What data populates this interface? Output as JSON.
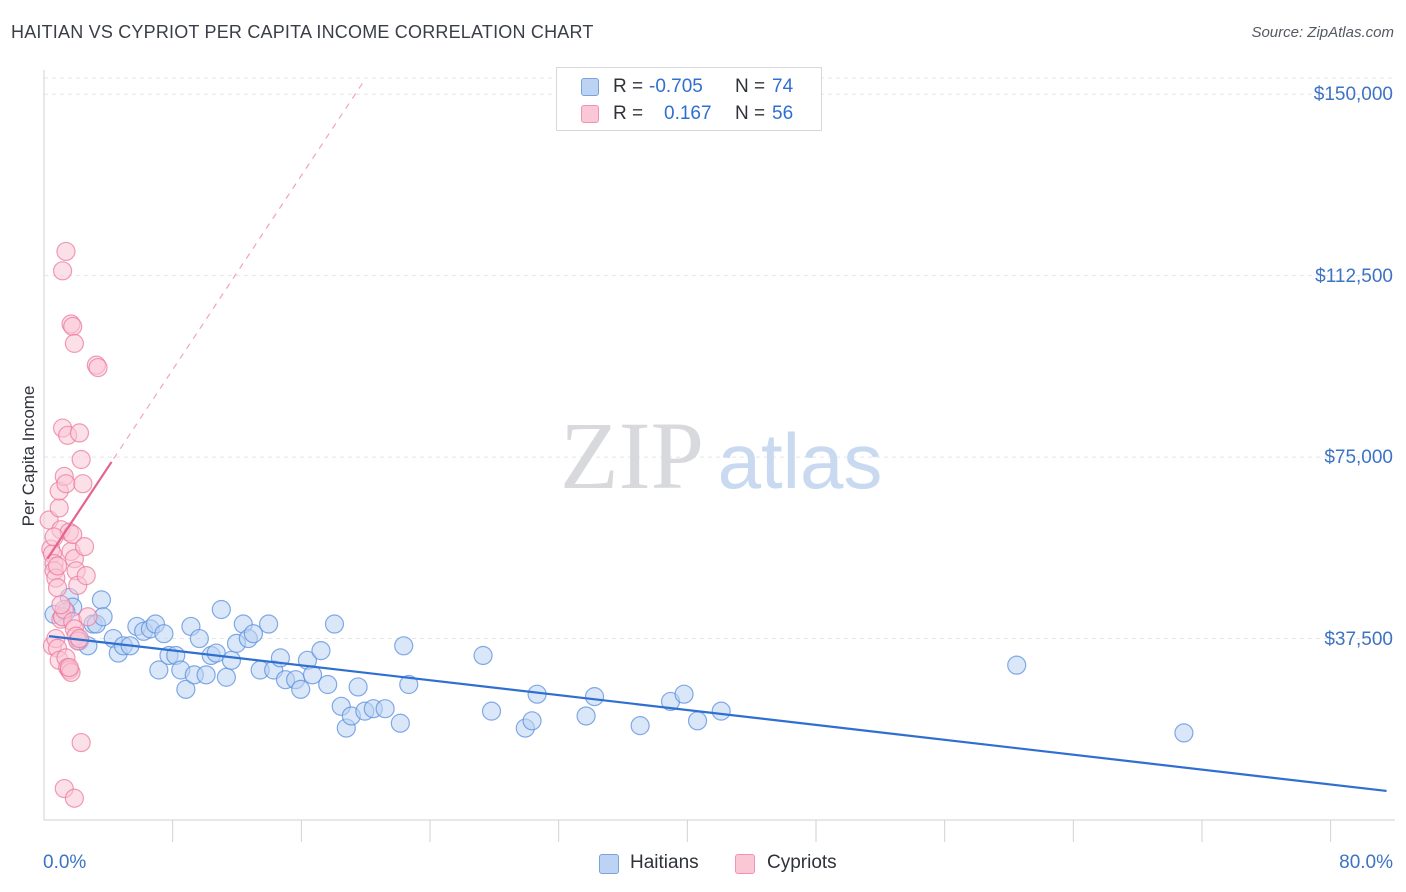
{
  "chart_data": {
    "type": "scatter",
    "title": "HAITIAN VS CYPRIOT PER CAPITA INCOME CORRELATION CHART",
    "source": "Source: ZipAtlas.com",
    "ylabel": "Per Capita Income",
    "xlabel": "",
    "xlim": [
      0,
      80
    ],
    "ylim": [
      0,
      155000
    ],
    "x_tick_labels": [
      "0.0%",
      "80.0%"
    ],
    "y_ticks": [
      {
        "value": 37500,
        "label": "$37,500"
      },
      {
        "value": 75000,
        "label": "$75,000"
      },
      {
        "value": 112500,
        "label": "$112,500"
      },
      {
        "value": 150000,
        "label": "$150,000"
      }
    ],
    "watermark": {
      "left": "ZIP",
      "right": "atlas"
    },
    "legend_stats": [
      {
        "r_label": "R =",
        "r_value": "-0.705",
        "n_label": "N =",
        "n_value": "74",
        "color": "#5b8fde"
      },
      {
        "r_label": "R =",
        "r_value": "0.167",
        "n_label": "N =",
        "n_value": "56",
        "color": "#ec7aa0"
      }
    ],
    "series": [
      {
        "name": "Haitians",
        "color": "#5b8fde",
        "fill": "#bcd3f3",
        "trend": {
          "x": [
            0.3,
            79.5
          ],
          "y": [
            38000,
            6000
          ],
          "style": "solid"
        },
        "points": [
          [
            0.6,
            42500
          ],
          [
            1.1,
            42000
          ],
          [
            1.5,
            46000
          ],
          [
            1.7,
            44000
          ],
          [
            2.1,
            37000
          ],
          [
            2.6,
            36000
          ],
          [
            2.9,
            40500
          ],
          [
            3.1,
            40500
          ],
          [
            3.4,
            45500
          ],
          [
            3.5,
            42000
          ],
          [
            4.1,
            37500
          ],
          [
            4.4,
            34500
          ],
          [
            4.7,
            36000
          ],
          [
            5.1,
            36000
          ],
          [
            5.5,
            40000
          ],
          [
            5.9,
            39000
          ],
          [
            6.3,
            39500
          ],
          [
            6.6,
            40500
          ],
          [
            6.8,
            31000
          ],
          [
            7.1,
            38500
          ],
          [
            7.4,
            34000
          ],
          [
            7.8,
            34000
          ],
          [
            8.1,
            31000
          ],
          [
            8.4,
            27000
          ],
          [
            8.7,
            40000
          ],
          [
            8.9,
            30000
          ],
          [
            9.2,
            37500
          ],
          [
            9.6,
            30000
          ],
          [
            9.9,
            34000
          ],
          [
            10.2,
            34500
          ],
          [
            10.5,
            43500
          ],
          [
            10.8,
            29500
          ],
          [
            11.1,
            33000
          ],
          [
            11.4,
            36500
          ],
          [
            11.8,
            40500
          ],
          [
            12.1,
            37500
          ],
          [
            12.4,
            38500
          ],
          [
            12.8,
            31000
          ],
          [
            13.3,
            40500
          ],
          [
            13.6,
            31000
          ],
          [
            14.0,
            33500
          ],
          [
            14.3,
            29000
          ],
          [
            14.9,
            29000
          ],
          [
            15.2,
            27000
          ],
          [
            15.6,
            33000
          ],
          [
            15.9,
            30000
          ],
          [
            16.4,
            35000
          ],
          [
            16.8,
            28000
          ],
          [
            17.2,
            40500
          ],
          [
            17.6,
            23500
          ],
          [
            17.9,
            19000
          ],
          [
            18.2,
            21500
          ],
          [
            18.6,
            27500
          ],
          [
            19.0,
            22500
          ],
          [
            19.5,
            23000
          ],
          [
            20.2,
            23000
          ],
          [
            21.1,
            20000
          ],
          [
            21.3,
            36000
          ],
          [
            21.6,
            28000
          ],
          [
            26.0,
            34000
          ],
          [
            26.5,
            22500
          ],
          [
            28.5,
            19000
          ],
          [
            28.9,
            20500
          ],
          [
            29.2,
            26000
          ],
          [
            32.1,
            21500
          ],
          [
            32.6,
            25500
          ],
          [
            35.3,
            19500
          ],
          [
            37.1,
            24500
          ],
          [
            37.9,
            26000
          ],
          [
            38.7,
            20500
          ],
          [
            40.1,
            22500
          ],
          [
            57.6,
            32000
          ],
          [
            67.5,
            18000
          ],
          [
            1.3,
            43000
          ]
        ]
      },
      {
        "name": "Cypriots",
        "color": "#ec7aa0",
        "fill": "#f9c7d6",
        "trend": {
          "x": [
            0.2,
            4.0
          ],
          "y": [
            54000,
            74000
          ],
          "style": "solid"
        },
        "trend_extended": {
          "x": [
            0.2,
            19.0
          ],
          "y": [
            54000,
            153000
          ],
          "style": "dashed"
        },
        "points": [
          [
            0.3,
            62000
          ],
          [
            0.4,
            56000
          ],
          [
            0.5,
            55000
          ],
          [
            0.6,
            53000
          ],
          [
            0.6,
            51500
          ],
          [
            0.7,
            50000
          ],
          [
            0.8,
            48000
          ],
          [
            0.9,
            64500
          ],
          [
            0.9,
            68000
          ],
          [
            1.0,
            60000
          ],
          [
            1.1,
            81000
          ],
          [
            1.2,
            71000
          ],
          [
            1.3,
            69500
          ],
          [
            1.4,
            79500
          ],
          [
            1.5,
            59500
          ],
          [
            1.6,
            55500
          ],
          [
            1.7,
            59000
          ],
          [
            1.8,
            54000
          ],
          [
            1.9,
            51500
          ],
          [
            2.0,
            48500
          ],
          [
            2.1,
            80000
          ],
          [
            2.2,
            74500
          ],
          [
            2.3,
            69500
          ],
          [
            2.4,
            56500
          ],
          [
            2.5,
            50500
          ],
          [
            1.1,
            113500
          ],
          [
            1.3,
            117500
          ],
          [
            1.6,
            102500
          ],
          [
            1.7,
            102000
          ],
          [
            1.8,
            98500
          ],
          [
            3.1,
            94000
          ],
          [
            3.2,
            93500
          ],
          [
            0.5,
            36000
          ],
          [
            0.7,
            37500
          ],
          [
            0.8,
            35500
          ],
          [
            0.9,
            33000
          ],
          [
            1.0,
            41500
          ],
          [
            1.1,
            42000
          ],
          [
            1.2,
            43500
          ],
          [
            1.3,
            33500
          ],
          [
            1.4,
            31500
          ],
          [
            1.5,
            31000
          ],
          [
            1.6,
            30500
          ],
          [
            1.7,
            41000
          ],
          [
            1.8,
            39500
          ],
          [
            1.9,
            38000
          ],
          [
            2.0,
            37000
          ],
          [
            1.5,
            31500
          ],
          [
            2.1,
            37500
          ],
          [
            2.2,
            16000
          ],
          [
            1.2,
            6500
          ],
          [
            1.8,
            4500
          ],
          [
            0.6,
            58500
          ],
          [
            0.8,
            52500
          ],
          [
            1.0,
            44500
          ],
          [
            2.6,
            42000
          ]
        ]
      }
    ]
  }
}
